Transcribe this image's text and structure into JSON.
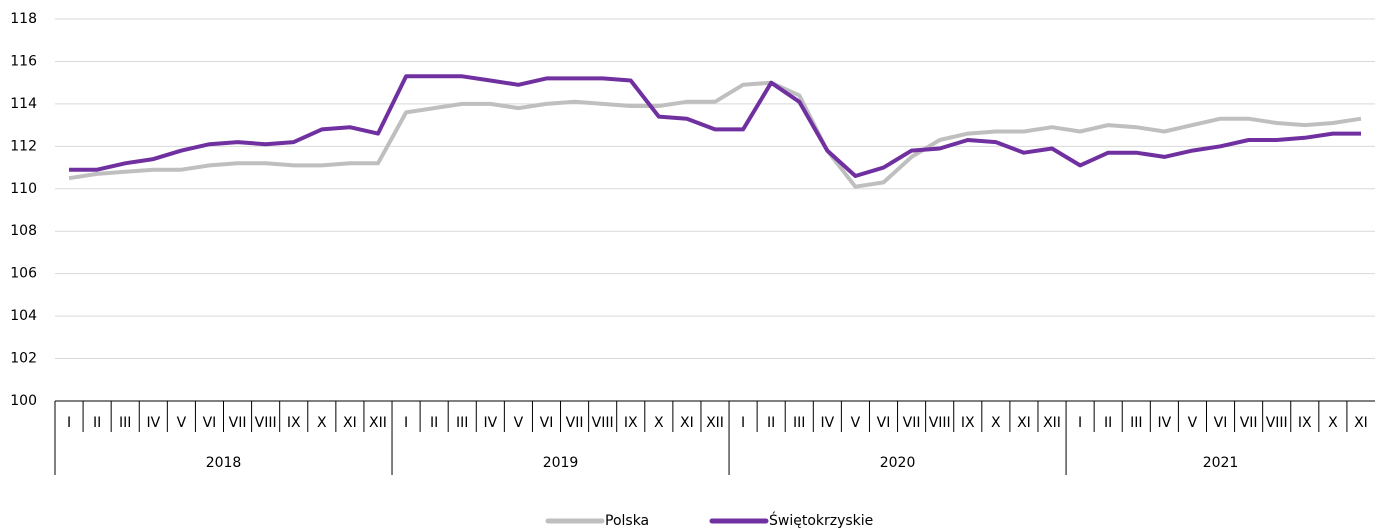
{
  "chart_data": {
    "type": "line",
    "category_groups": [
      {
        "name": "2018",
        "categories": [
          "I",
          "II",
          "III",
          "IV",
          "V",
          "VI",
          "VII",
          "VIII",
          "IX",
          "X",
          "XI",
          "XII"
        ]
      },
      {
        "name": "2019",
        "categories": [
          "I",
          "II",
          "III",
          "IV",
          "V",
          "VI",
          "VII",
          "VIII",
          "IX",
          "X",
          "XI",
          "XII"
        ]
      },
      {
        "name": "2020",
        "categories": [
          "I",
          "II",
          "III",
          "IV",
          "V",
          "VI",
          "VII",
          "VIII",
          "IX",
          "X",
          "XI",
          "XII"
        ]
      },
      {
        "name": "2021",
        "categories": [
          "I",
          "II",
          "III",
          "IV",
          "V",
          "VI",
          "VII",
          "VIII",
          "IX",
          "X",
          "XI"
        ]
      }
    ],
    "series": [
      {
        "name": "Polska",
        "color": "#bfbfbf",
        "values": [
          110.5,
          110.7,
          110.8,
          110.9,
          110.9,
          111.1,
          111.2,
          111.2,
          111.1,
          111.1,
          111.2,
          111.2,
          113.6,
          113.8,
          114.0,
          114.0,
          113.8,
          114.0,
          114.1,
          114.0,
          113.9,
          113.9,
          114.1,
          114.1,
          114.9,
          115.0,
          114.4,
          111.8,
          110.1,
          110.3,
          111.5,
          112.3,
          112.6,
          112.7,
          112.7,
          112.9,
          112.7,
          113.0,
          112.9,
          112.7,
          113.0,
          113.3,
          113.3,
          113.1,
          113.0,
          113.1,
          113.3
        ]
      },
      {
        "name": "Świętokrzyskie",
        "color": "#7030a0",
        "values": [
          110.9,
          110.9,
          111.2,
          111.4,
          111.8,
          112.1,
          112.2,
          112.1,
          112.2,
          112.8,
          112.9,
          112.6,
          115.3,
          115.3,
          115.3,
          115.1,
          114.9,
          115.2,
          115.2,
          115.2,
          115.1,
          113.4,
          113.3,
          112.8,
          112.8,
          115.0,
          114.1,
          111.8,
          110.6,
          111.0,
          111.8,
          111.9,
          112.3,
          112.2,
          111.7,
          111.9,
          111.1,
          111.7,
          111.7,
          111.5,
          111.8,
          112.0,
          112.3,
          112.3,
          112.4,
          112.6,
          112.6
        ]
      }
    ],
    "ylim": [
      100,
      118
    ],
    "yticks": [
      100,
      102,
      104,
      106,
      108,
      110,
      112,
      114,
      116,
      118
    ],
    "grid": true
  }
}
